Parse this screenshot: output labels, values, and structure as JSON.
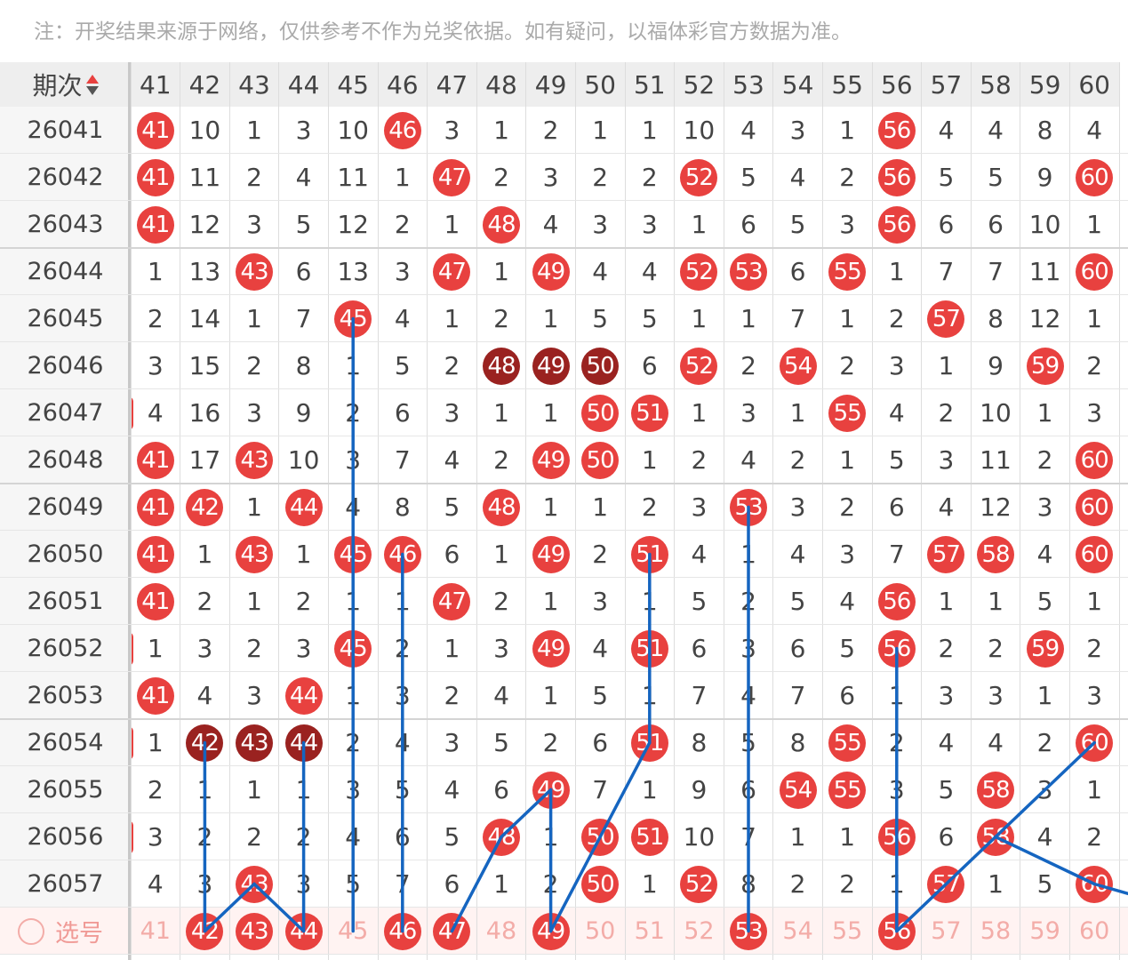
{
  "notice": "注：开奖结果来源于网络，仅供参考不作为兑奖依据。如有疑问，以福体彩官方数据为准。",
  "header": {
    "issue_label": "期次",
    "sort_icon": "sort-arrows-icon",
    "columns": [
      "41",
      "42",
      "43",
      "44",
      "45",
      "46",
      "47",
      "48",
      "49",
      "50",
      "51",
      "52",
      "53",
      "54",
      "55",
      "56",
      "57",
      "58",
      "59",
      "60"
    ]
  },
  "colors": {
    "hit": "#e8413f",
    "hit_dark": "#9a2220",
    "line": "#1565c0",
    "pick_text": "#f3aca8"
  },
  "rows": [
    {
      "issue": "26041",
      "cells": [
        "41",
        "10",
        "1",
        "3",
        "10",
        "46",
        "3",
        "1",
        "2",
        "1",
        "1",
        "10",
        "4",
        "3",
        "1",
        "56",
        "4",
        "4",
        "8",
        "4"
      ],
      "hits": [
        0,
        5,
        15
      ],
      "dark": []
    },
    {
      "issue": "26042",
      "cells": [
        "41",
        "11",
        "2",
        "4",
        "11",
        "1",
        "47",
        "2",
        "3",
        "2",
        "2",
        "52",
        "5",
        "4",
        "2",
        "56",
        "5",
        "5",
        "9",
        "60"
      ],
      "hits": [
        0,
        6,
        11,
        15,
        19
      ],
      "dark": []
    },
    {
      "issue": "26043",
      "cells": [
        "41",
        "12",
        "3",
        "5",
        "12",
        "2",
        "1",
        "48",
        "4",
        "3",
        "3",
        "1",
        "6",
        "5",
        "3",
        "56",
        "6",
        "6",
        "10",
        "1"
      ],
      "hits": [
        0,
        7,
        15
      ],
      "dark": []
    },
    {
      "issue": "26044",
      "cells": [
        "1",
        "13",
        "43",
        "6",
        "13",
        "3",
        "47",
        "1",
        "49",
        "4",
        "4",
        "52",
        "53",
        "6",
        "55",
        "1",
        "7",
        "7",
        "11",
        "60"
      ],
      "hits": [
        2,
        6,
        8,
        11,
        12,
        14,
        19
      ],
      "dark": []
    },
    {
      "issue": "26045",
      "cells": [
        "2",
        "14",
        "1",
        "7",
        "45",
        "4",
        "1",
        "2",
        "1",
        "5",
        "5",
        "1",
        "1",
        "7",
        "1",
        "2",
        "57",
        "8",
        "12",
        "1"
      ],
      "hits": [
        4,
        16
      ],
      "dark": []
    },
    {
      "issue": "26046",
      "cells": [
        "3",
        "15",
        "2",
        "8",
        "1",
        "5",
        "2",
        "48",
        "49",
        "50",
        "6",
        "52",
        "2",
        "54",
        "2",
        "3",
        "1",
        "9",
        "59",
        "2"
      ],
      "hits": [
        7,
        8,
        9,
        11,
        13,
        18
      ],
      "dark": [
        7,
        8,
        9
      ]
    },
    {
      "issue": "26047",
      "cells": [
        "4",
        "16",
        "3",
        "9",
        "2",
        "6",
        "3",
        "1",
        "1",
        "50",
        "51",
        "1",
        "3",
        "1",
        "55",
        "4",
        "2",
        "10",
        "1",
        "3"
      ],
      "hits": [
        9,
        10,
        14
      ],
      "dark": []
    },
    {
      "issue": "26048",
      "cells": [
        "41",
        "17",
        "43",
        "10",
        "3",
        "7",
        "4",
        "2",
        "49",
        "50",
        "1",
        "2",
        "4",
        "2",
        "1",
        "5",
        "3",
        "11",
        "2",
        "60"
      ],
      "hits": [
        0,
        2,
        8,
        9,
        19
      ],
      "dark": []
    },
    {
      "issue": "26049",
      "cells": [
        "41",
        "42",
        "1",
        "44",
        "4",
        "8",
        "5",
        "48",
        "1",
        "1",
        "2",
        "3",
        "53",
        "3",
        "2",
        "6",
        "4",
        "12",
        "3",
        "60"
      ],
      "hits": [
        0,
        1,
        3,
        7,
        12,
        19
      ],
      "dark": []
    },
    {
      "issue": "26050",
      "cells": [
        "41",
        "1",
        "43",
        "1",
        "45",
        "46",
        "6",
        "1",
        "49",
        "2",
        "51",
        "4",
        "1",
        "4",
        "3",
        "7",
        "57",
        "58",
        "4",
        "60"
      ],
      "hits": [
        0,
        2,
        4,
        5,
        8,
        10,
        16,
        17,
        19
      ],
      "dark": []
    },
    {
      "issue": "26051",
      "cells": [
        "41",
        "2",
        "1",
        "2",
        "1",
        "1",
        "47",
        "2",
        "1",
        "3",
        "1",
        "5",
        "2",
        "5",
        "4",
        "56",
        "1",
        "1",
        "5",
        "1"
      ],
      "hits": [
        0,
        6,
        15
      ],
      "dark": []
    },
    {
      "issue": "26052",
      "cells": [
        "1",
        "3",
        "2",
        "3",
        "45",
        "2",
        "1",
        "3",
        "49",
        "4",
        "51",
        "6",
        "3",
        "6",
        "5",
        "56",
        "2",
        "2",
        "59",
        "2"
      ],
      "hits": [
        4,
        8,
        10,
        15,
        18
      ],
      "dark": []
    },
    {
      "issue": "26053",
      "cells": [
        "41",
        "4",
        "3",
        "44",
        "1",
        "3",
        "2",
        "4",
        "1",
        "5",
        "1",
        "7",
        "4",
        "7",
        "6",
        "1",
        "3",
        "3",
        "1",
        "3"
      ],
      "hits": [
        0,
        3
      ],
      "dark": []
    },
    {
      "issue": "26054",
      "cells": [
        "1",
        "42",
        "43",
        "44",
        "2",
        "4",
        "3",
        "5",
        "2",
        "6",
        "51",
        "8",
        "5",
        "8",
        "55",
        "2",
        "4",
        "4",
        "2",
        "60"
      ],
      "hits": [
        1,
        2,
        3,
        10,
        14,
        19
      ],
      "dark": [
        1,
        2,
        3
      ]
    },
    {
      "issue": "26055",
      "cells": [
        "2",
        "1",
        "1",
        "1",
        "3",
        "5",
        "4",
        "6",
        "49",
        "7",
        "1",
        "9",
        "6",
        "54",
        "55",
        "3",
        "5",
        "58",
        "3",
        "1"
      ],
      "hits": [
        8,
        13,
        14,
        17
      ],
      "dark": []
    },
    {
      "issue": "26056",
      "cells": [
        "3",
        "2",
        "2",
        "2",
        "4",
        "6",
        "5",
        "48",
        "1",
        "50",
        "51",
        "10",
        "7",
        "1",
        "1",
        "56",
        "6",
        "58",
        "4",
        "2"
      ],
      "hits": [
        7,
        9,
        10,
        15,
        17
      ],
      "dark": []
    },
    {
      "issue": "26057",
      "cells": [
        "4",
        "3",
        "43",
        "3",
        "5",
        "7",
        "6",
        "1",
        "2",
        "50",
        "1",
        "52",
        "8",
        "2",
        "2",
        "1",
        "57",
        "1",
        "5",
        "60"
      ],
      "hits": [
        2,
        9,
        11,
        16,
        19
      ],
      "dark": []
    }
  ],
  "pick_row": {
    "label": "选号",
    "cells": [
      "41",
      "42",
      "43",
      "44",
      "45",
      "46",
      "47",
      "48",
      "49",
      "50",
      "51",
      "52",
      "53",
      "54",
      "55",
      "56",
      "57",
      "58",
      "59",
      "60"
    ],
    "selected": [
      1,
      2,
      3,
      5,
      6,
      8,
      12,
      15
    ]
  },
  "trend_lines": [
    [
      [
        1,
        17
      ],
      [
        1,
        13
      ]
    ],
    [
      [
        1,
        17
      ],
      [
        2,
        16
      ]
    ],
    [
      [
        2,
        16
      ],
      [
        3,
        17
      ]
    ],
    [
      [
        3,
        17
      ],
      [
        3,
        13
      ]
    ],
    [
      [
        4,
        17
      ],
      [
        4,
        4
      ]
    ],
    [
      [
        5,
        17
      ],
      [
        5,
        9
      ]
    ],
    [
      [
        6,
        17
      ],
      [
        7,
        15
      ]
    ],
    [
      [
        7,
        15
      ],
      [
        8,
        14
      ]
    ],
    [
      [
        8,
        14
      ],
      [
        8,
        17
      ]
    ],
    [
      [
        8,
        17
      ],
      [
        10,
        13
      ]
    ],
    [
      [
        10,
        13
      ],
      [
        10,
        9
      ]
    ],
    [
      [
        12,
        17
      ],
      [
        12,
        8
      ]
    ],
    [
      [
        15,
        17
      ],
      [
        15,
        11
      ]
    ],
    [
      [
        15,
        17
      ],
      [
        17,
        15
      ]
    ],
    [
      [
        17,
        15
      ],
      [
        19,
        13
      ]
    ],
    [
      [
        17,
        15
      ],
      [
        19,
        16
      ]
    ],
    [
      [
        19,
        16
      ],
      [
        20,
        16.3
      ]
    ]
  ]
}
